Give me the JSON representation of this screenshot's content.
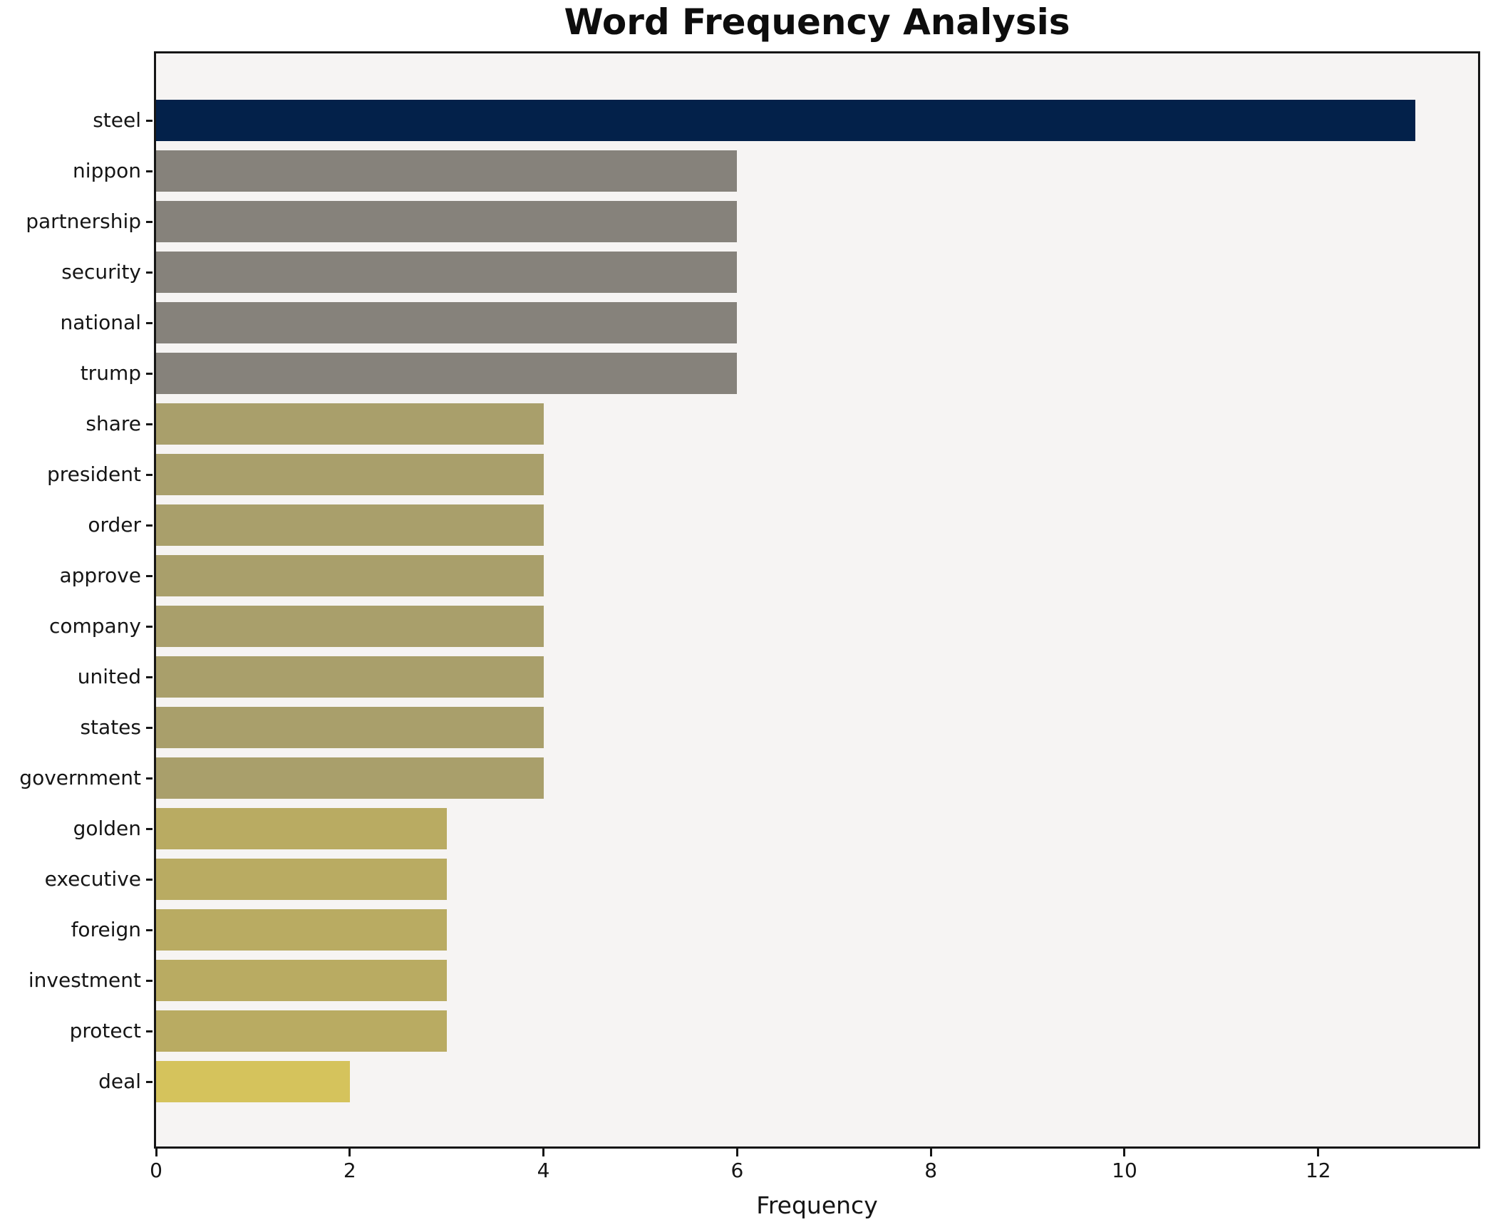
{
  "chart_data": {
    "type": "bar",
    "orientation": "horizontal",
    "title": "Word Frequency Analysis",
    "xlabel": "Frequency",
    "ylabel": "",
    "categories": [
      "steel",
      "nippon",
      "partnership",
      "security",
      "national",
      "trump",
      "share",
      "president",
      "order",
      "approve",
      "company",
      "united",
      "states",
      "government",
      "golden",
      "executive",
      "foreign",
      "investment",
      "protect",
      "deal"
    ],
    "values": [
      13,
      6,
      6,
      6,
      6,
      6,
      4,
      4,
      4,
      4,
      4,
      4,
      4,
      4,
      3,
      3,
      3,
      3,
      3,
      2
    ],
    "xticks": [
      0,
      2,
      4,
      6,
      8,
      10,
      12
    ],
    "xlim": [
      0,
      13.65
    ],
    "grid": false,
    "legend": null,
    "colors": {
      "value_13": "#03214a",
      "value_6": "#86827b",
      "value_4": "#a99f6b",
      "value_3": "#b9ab62",
      "value_2": "#d5c35c",
      "axes_background": "#f6f4f3",
      "figure_background": "#ffffff",
      "spine": "#161616",
      "text": "#151515"
    }
  }
}
